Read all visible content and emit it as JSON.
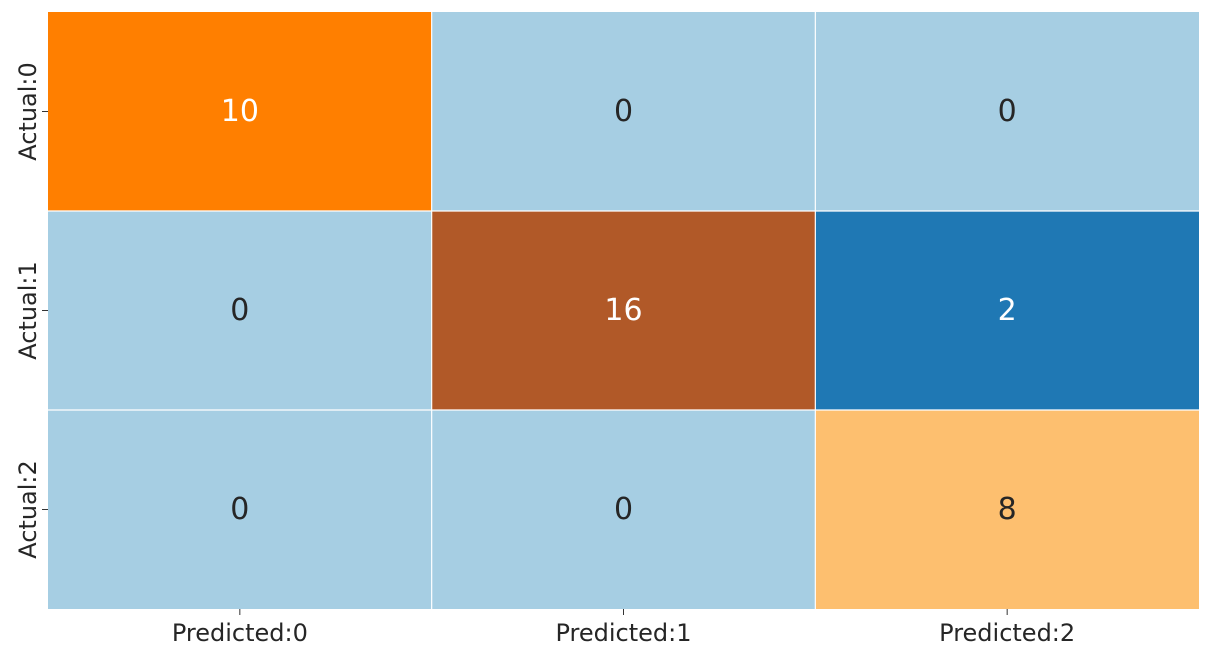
{
  "chart_data": {
    "type": "heatmap",
    "title": "",
    "xlabel": "",
    "ylabel": "",
    "x_categories": [
      "Predicted:0",
      "Predicted:1",
      "Predicted:2"
    ],
    "y_categories": [
      "Actual:0",
      "Actual:1",
      "Actual:2"
    ],
    "matrix": [
      [
        10,
        0,
        0
      ],
      [
        0,
        16,
        2
      ],
      [
        0,
        0,
        8
      ]
    ],
    "cell_colors": [
      [
        "#ff7f00",
        "#a6cee3",
        "#a6cee3"
      ],
      [
        "#a6cee3",
        "#b15928",
        "#1f78b4"
      ],
      [
        "#a6cee3",
        "#a6cee3",
        "#fdbf6f"
      ]
    ],
    "text_colors": [
      [
        "#ffffff",
        "#262626",
        "#262626"
      ],
      [
        "#262626",
        "#ffffff",
        "#ffffff"
      ],
      [
        "#262626",
        "#262626",
        "#262626"
      ]
    ],
    "colorbar": false,
    "grid_line_color": "#ffffff"
  }
}
